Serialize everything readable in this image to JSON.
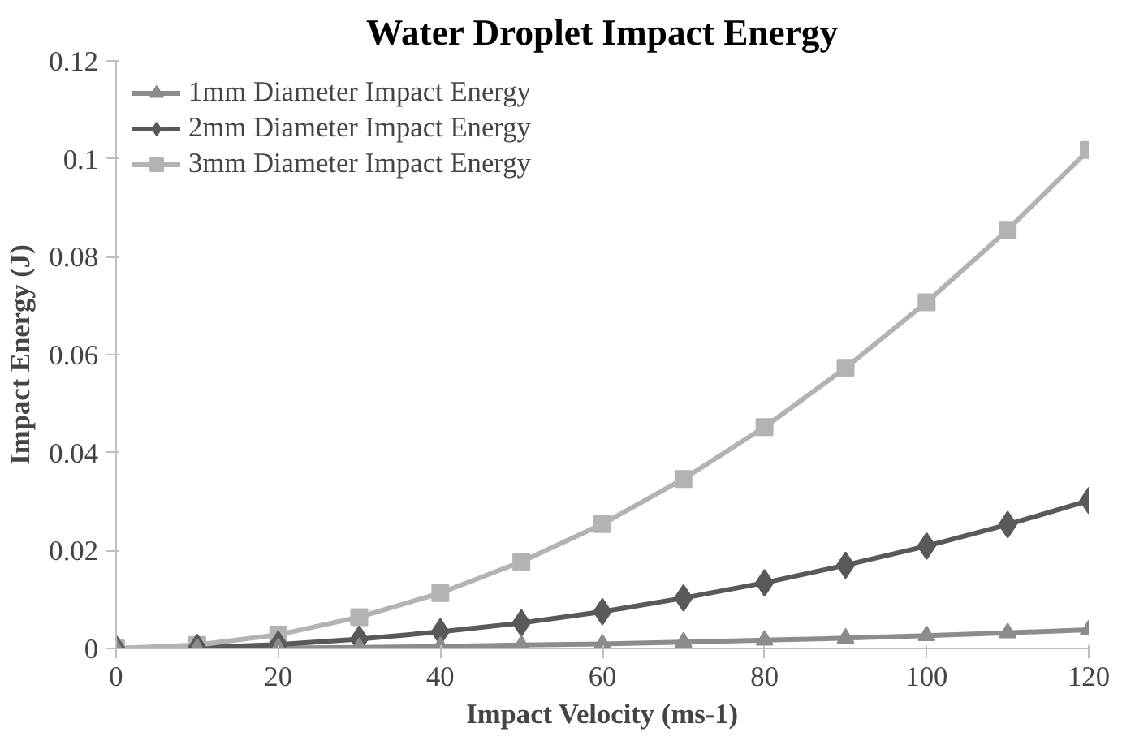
{
  "chart_data": {
    "type": "line",
    "title": "Water Droplet Impact Energy",
    "xlabel": "Impact Velocity (ms-1)",
    "ylabel": "Impact Energy (J)",
    "x": [
      0,
      10,
      20,
      30,
      40,
      50,
      60,
      70,
      80,
      90,
      100,
      110,
      120
    ],
    "series": [
      {
        "name": "1mm Diameter Impact Energy",
        "color": "#8c8c8c",
        "marker": "triangle",
        "values": [
          0,
          0,
          0.0001,
          0.0002,
          0.0004,
          0.0007,
          0.0009,
          0.0013,
          0.0017,
          0.0021,
          0.0026,
          0.0032,
          0.0038
        ]
      },
      {
        "name": "2mm Diameter Impact Energy",
        "color": "#595959",
        "marker": "diamond",
        "values": [
          0,
          0.0002,
          0.0008,
          0.0019,
          0.0034,
          0.0052,
          0.0075,
          0.0103,
          0.0134,
          0.017,
          0.0209,
          0.0253,
          0.0302
        ]
      },
      {
        "name": "3mm Diameter Impact Energy",
        "color": "#b3b3b3",
        "marker": "square",
        "values": [
          0,
          0.0007,
          0.0028,
          0.0064,
          0.0113,
          0.0177,
          0.0254,
          0.0346,
          0.0452,
          0.0573,
          0.0707,
          0.0855,
          0.1018
        ]
      }
    ],
    "xlim": [
      0,
      120
    ],
    "xticks": [
      0,
      20,
      40,
      60,
      80,
      100,
      120
    ],
    "ylim": [
      0,
      0.12
    ],
    "yticks": [
      0,
      0.02,
      0.04,
      0.06,
      0.08,
      0.1,
      0.12
    ],
    "grid": false,
    "legend": "top left",
    "line_style": "solid"
  }
}
